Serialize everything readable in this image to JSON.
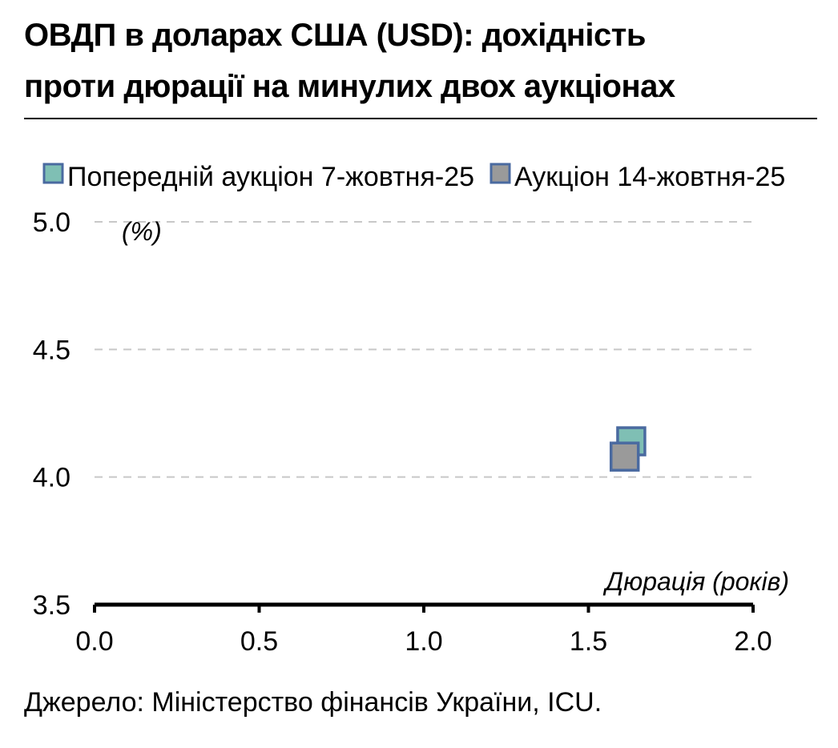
{
  "title_line1": "ОВДП в доларах США (USD): дохідність",
  "title_line2": "проти дюрації на минулих двох аукціонах",
  "source": "Джерело: Міністерство фінансів України, ICU.",
  "chart_data": {
    "type": "scatter",
    "ylabel": "(%)",
    "xlabel": "Дюрація (років)",
    "xlim": [
      0.0,
      2.0
    ],
    "ylim": [
      3.5,
      5.0
    ],
    "xticks": [
      "0.0",
      "0.5",
      "1.0",
      "1.5",
      "2.0"
    ],
    "yticks": [
      "3.5",
      "4.0",
      "4.5",
      "5.0"
    ],
    "grid": "horizontal dashed",
    "legend_position": "top",
    "series": [
      {
        "name": "Попередній аукціон 7-жовтня-25",
        "color": "#7fbfb4",
        "edge": "#4a6aa0",
        "points": [
          {
            "x": 1.63,
            "y": 4.14
          }
        ]
      },
      {
        "name": "Аукціон 14-жовтня-25",
        "color": "#9a9a9a",
        "edge": "#4a6aa0",
        "points": [
          {
            "x": 1.61,
            "y": 4.08
          }
        ]
      }
    ]
  }
}
